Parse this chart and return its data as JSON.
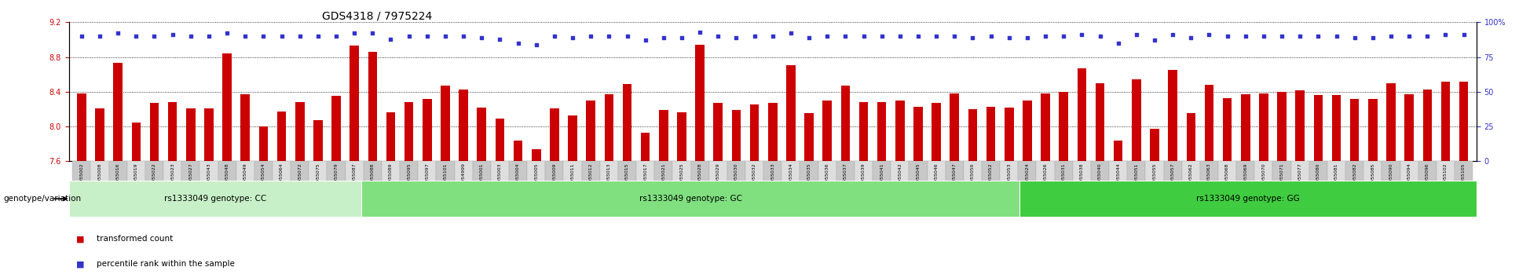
{
  "title": "GDS4318 / 7975224",
  "samples_cc": [
    "GSM955002",
    "GSM955008",
    "GSM955016",
    "GSM955019",
    "GSM955022",
    "GSM955023",
    "GSM955027",
    "GSM955043",
    "GSM955048",
    "GSM955049",
    "GSM955054",
    "GSM955064",
    "GSM955072",
    "GSM955075",
    "GSM955079",
    "GSM955087"
  ],
  "samples_gc": [
    "GSM955088",
    "GSM955089",
    "GSM955095",
    "GSM955097",
    "GSM955101",
    "GSM954999",
    "GSM955001",
    "GSM955003",
    "GSM955004",
    "GSM955005",
    "GSM955009",
    "GSM955011",
    "GSM955012",
    "GSM955013",
    "GSM955015",
    "GSM955017",
    "GSM955021",
    "GSM955025",
    "GSM955028",
    "GSM955029",
    "GSM955030",
    "GSM955032",
    "GSM955033",
    "GSM955034",
    "GSM955035",
    "GSM955036",
    "GSM955037",
    "GSM955039",
    "GSM955041",
    "GSM955042",
    "GSM955045",
    "GSM955046",
    "GSM955047",
    "GSM955050",
    "GSM955052",
    "GSM955053"
  ],
  "samples_gg": [
    "GSM955024",
    "GSM955026",
    "GSM955031",
    "GSM955038",
    "GSM955040",
    "GSM955044",
    "GSM955051",
    "GSM955055",
    "GSM955057",
    "GSM955062",
    "GSM955063",
    "GSM955068",
    "GSM955069",
    "GSM955070",
    "GSM955071",
    "GSM955077",
    "GSM955080",
    "GSM955081",
    "GSM955082",
    "GSM955085",
    "GSM955090",
    "GSM955094",
    "GSM955096",
    "GSM955102",
    "GSM955105"
  ],
  "group_labels": [
    "rs1333049 genotype: CC",
    "rs1333049 genotype: GC",
    "rs1333049 genotype: GG"
  ],
  "group_sizes": [
    16,
    36,
    25
  ],
  "ylim_left": [
    7.6,
    9.2
  ],
  "ylim_right": [
    0,
    100
  ],
  "yticks_left": [
    7.6,
    8.0,
    8.4,
    8.8,
    9.2
  ],
  "yticks_right": [
    0,
    25,
    50,
    75,
    100
  ],
  "bar_color": "#CC0000",
  "dot_color": "#3333CC",
  "bar_baseline": 7.6,
  "transformed_counts_cc": [
    8.38,
    8.21,
    8.73,
    8.05,
    8.27,
    8.28,
    8.21,
    8.21,
    8.84,
    8.37,
    8.0,
    8.17,
    8.28,
    8.07,
    8.35,
    8.93
  ],
  "transformed_counts_gc": [
    8.86,
    8.16,
    8.28,
    8.32,
    8.47,
    8.43,
    8.22,
    8.09,
    7.84,
    7.74,
    8.21,
    8.13,
    8.3,
    8.37,
    8.49,
    7.93,
    8.19,
    8.16,
    8.94,
    8.27,
    8.19,
    8.25,
    8.27,
    8.71,
    8.15,
    8.3,
    8.47,
    8.28,
    8.28,
    8.3,
    8.23,
    8.27,
    8.38,
    8.2,
    8.23,
    8.22
  ],
  "transformed_counts_gg": [
    8.3,
    8.38,
    8.4,
    8.67,
    8.5,
    7.84,
    8.54,
    7.97,
    8.65,
    8.15,
    8.48,
    8.33,
    8.37,
    8.38,
    8.4,
    8.42,
    8.36,
    8.36,
    8.32,
    8.32,
    8.5,
    8.37,
    8.43,
    8.52,
    8.52
  ],
  "percentile_cc": [
    90,
    90,
    92,
    90,
    90,
    91,
    90,
    90,
    92,
    90,
    90,
    90,
    90,
    90,
    90,
    92
  ],
  "percentile_gc": [
    92,
    88,
    90,
    90,
    90,
    90,
    89,
    88,
    85,
    84,
    90,
    89,
    90,
    90,
    90,
    87,
    89,
    89,
    93,
    90,
    89,
    90,
    90,
    92,
    89,
    90,
    90,
    90,
    90,
    90,
    90,
    90,
    90,
    89,
    90,
    89
  ],
  "percentile_gg": [
    89,
    90,
    90,
    91,
    90,
    85,
    91,
    87,
    91,
    89,
    91,
    90,
    90,
    90,
    90,
    90,
    90,
    90,
    89,
    89,
    90,
    90,
    90,
    91,
    91
  ],
  "group_color_cc": "#c8f0c8",
  "group_color_gc": "#80e080",
  "group_color_gg": "#40cc40",
  "genotype_label": "genotype/variation",
  "legend_red": "transformed count",
  "legend_blue": "percentile rank within the sample",
  "title_fontsize": 10,
  "axis_fontsize": 7,
  "tick_label_fontsize": 4.5
}
